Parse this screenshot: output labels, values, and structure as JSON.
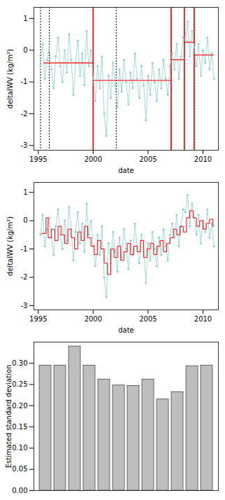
{
  "chart_data": [
    {
      "type": "scatter",
      "xlabel": "date",
      "ylabel": "deltaIWV (kg/m²)",
      "xlim": [
        1994.6,
        2011.4
      ],
      "xticks": [
        1995,
        2000,
        2005,
        2010
      ],
      "ylim": [
        -3.15,
        1.35
      ],
      "yticks": [
        -3,
        -2,
        -1,
        0,
        1
      ],
      "series": [
        {
          "type": "scatter",
          "color": "#8ccfcf",
          "marker": "circle",
          "x": [
            1995.2,
            1995.4,
            1995.6,
            1995.8,
            1996.0,
            1996.2,
            1996.4,
            1996.6,
            1996.8,
            1997.0,
            1997.2,
            1997.4,
            1997.6,
            1997.8,
            1998.0,
            1998.2,
            1998.4,
            1998.6,
            1998.8,
            1999.0,
            1999.2,
            1999.4,
            1999.6,
            1999.8,
            2000.0,
            2000.2,
            2000.4,
            2000.6,
            2000.8,
            2001.0,
            2001.2,
            2001.4,
            2001.6,
            2001.8,
            2002.0,
            2002.2,
            2002.4,
            2002.6,
            2002.8,
            2003.0,
            2003.2,
            2003.4,
            2003.6,
            2003.8,
            2004.0,
            2004.2,
            2004.4,
            2004.6,
            2004.8,
            2005.0,
            2005.2,
            2005.4,
            2005.6,
            2005.8,
            2006.0,
            2006.2,
            2006.4,
            2006.6,
            2006.8,
            2007.0,
            2007.2,
            2007.4,
            2007.6,
            2007.8,
            2008.0,
            2008.2,
            2008.4,
            2008.6,
            2008.8,
            2009.0,
            2009.2,
            2009.4,
            2009.6,
            2009.8,
            2010.0,
            2010.2,
            2010.4,
            2010.6,
            2010.8,
            2011.0
          ],
          "values": [
            -0.5,
            0.2,
            -0.9,
            -0.3,
            0.1,
            -0.6,
            -1.2,
            -0.2,
            0.4,
            -0.5,
            -1.0,
            0.0,
            -0.7,
            0.5,
            -0.3,
            -1.4,
            -0.4,
            0.3,
            -0.8,
            -0.1,
            -1.1,
            0.6,
            -0.5,
            0.0,
            -0.9,
            -1.6,
            -0.5,
            -1.2,
            -0.2,
            -2.0,
            -2.7,
            -0.8,
            -1.5,
            -0.4,
            -1.1,
            -1.8,
            -0.6,
            -1.3,
            -0.3,
            -1.0,
            -1.7,
            -0.7,
            -1.2,
            -0.1,
            -0.9,
            -1.5,
            -0.5,
            -1.1,
            -2.2,
            -0.8,
            -1.4,
            -0.4,
            -1.0,
            -1.6,
            -0.6,
            -1.2,
            -0.3,
            -0.9,
            -1.4,
            -0.5,
            -0.1,
            -0.6,
            0.2,
            -0.9,
            -0.2,
            0.4,
            0.3,
            0.9,
            -0.2,
            0.6,
            0.1,
            -0.5,
            0.2,
            -0.8,
            0.0,
            -0.4,
            0.4,
            -0.6,
            -0.1,
            -0.9
          ]
        },
        {
          "type": "vline",
          "color": "black",
          "line_style": "dotted",
          "x": [
            1995.2,
            1996.0,
            2000.0,
            2002.1,
            2007.1,
            2008.3,
            2009.2
          ]
        },
        {
          "type": "vline",
          "color": "red",
          "line_style": "solid",
          "x": [
            2000.0,
            2007.1,
            2008.3,
            2009.2
          ]
        },
        {
          "type": "segments",
          "color": "red",
          "x_start": [
            1995.5,
            2000.0,
            2007.1,
            2008.3,
            2009.2
          ],
          "x_end": [
            2000.0,
            2007.1,
            2008.3,
            2009.2,
            2011.0
          ],
          "values": [
            -0.4,
            -0.95,
            -0.3,
            0.25,
            -0.15
          ]
        }
      ]
    },
    {
      "type": "scatter",
      "xlabel": "date",
      "ylabel": "deltaIWV (kg/m²)",
      "xlim": [
        1994.6,
        2011.4
      ],
      "xticks": [
        1995,
        2000,
        2005,
        2010
      ],
      "ylim": [
        -3.15,
        1.35
      ],
      "yticks": [
        -3,
        -2,
        -1,
        0,
        1
      ],
      "series": [
        {
          "type": "scatter",
          "color": "#8ccfcf",
          "marker": "circle",
          "x": [
            1995.2,
            1995.4,
            1995.6,
            1995.8,
            1996.0,
            1996.2,
            1996.4,
            1996.6,
            1996.8,
            1997.0,
            1997.2,
            1997.4,
            1997.6,
            1997.8,
            1998.0,
            1998.2,
            1998.4,
            1998.6,
            1998.8,
            1999.0,
            1999.2,
            1999.4,
            1999.6,
            1999.8,
            2000.0,
            2000.2,
            2000.4,
            2000.6,
            2000.8,
            2001.0,
            2001.2,
            2001.4,
            2001.6,
            2001.8,
            2002.0,
            2002.2,
            2002.4,
            2002.6,
            2002.8,
            2003.0,
            2003.2,
            2003.4,
            2003.6,
            2003.8,
            2004.0,
            2004.2,
            2004.4,
            2004.6,
            2004.8,
            2005.0,
            2005.2,
            2005.4,
            2005.6,
            2005.8,
            2006.0,
            2006.2,
            2006.4,
            2006.6,
            2006.8,
            2007.0,
            2007.2,
            2007.4,
            2007.6,
            2007.8,
            2008.0,
            2008.2,
            2008.4,
            2008.6,
            2008.8,
            2009.0,
            2009.2,
            2009.4,
            2009.6,
            2009.8,
            2010.0,
            2010.2,
            2010.4,
            2010.6,
            2010.8,
            2011.0
          ],
          "values": [
            -0.5,
            0.2,
            -0.9,
            -0.3,
            0.1,
            -0.6,
            -1.2,
            -0.2,
            0.4,
            -0.5,
            -1.0,
            0.0,
            -0.7,
            0.5,
            -0.3,
            -1.4,
            -0.4,
            0.3,
            -0.8,
            -0.1,
            -1.1,
            0.6,
            -0.5,
            0.0,
            -0.9,
            -1.6,
            -0.5,
            -1.2,
            -0.2,
            -2.0,
            -2.7,
            -0.8,
            -1.5,
            -0.4,
            -1.1,
            -1.8,
            -0.6,
            -1.3,
            -0.3,
            -1.0,
            -1.7,
            -0.7,
            -1.2,
            -0.1,
            -0.9,
            -1.5,
            -0.5,
            -1.1,
            -2.2,
            -0.8,
            -1.4,
            -0.4,
            -1.0,
            -1.6,
            -0.6,
            -1.2,
            -0.3,
            -0.9,
            -1.4,
            -0.5,
            -0.1,
            -0.6,
            0.2,
            -0.9,
            -0.2,
            0.4,
            0.3,
            0.9,
            -0.2,
            0.6,
            0.1,
            -0.5,
            0.2,
            -0.8,
            0.0,
            -0.4,
            0.4,
            -0.6,
            -0.1,
            -0.9
          ]
        },
        {
          "type": "step",
          "color": "red",
          "x": [
            1995.3,
            1995.7,
            1995.9,
            1996.2,
            1996.5,
            1996.8,
            1997.1,
            1997.4,
            1997.7,
            1998.0,
            1998.3,
            1998.6,
            1998.9,
            1999.2,
            1999.5,
            1999.8,
            2000.1,
            2000.4,
            2000.7,
            2001.0,
            2001.3,
            2001.6,
            2001.9,
            2002.2,
            2002.5,
            2002.8,
            2003.1,
            2003.4,
            2003.7,
            2004.0,
            2004.3,
            2004.6,
            2004.9,
            2005.2,
            2005.5,
            2005.8,
            2006.1,
            2006.4,
            2006.7,
            2007.0,
            2007.3,
            2007.6,
            2007.9,
            2008.2,
            2008.5,
            2008.8,
            2009.1,
            2009.4,
            2009.7,
            2010.0,
            2010.3,
            2010.6,
            2010.9,
            2011.0
          ],
          "values": [
            -0.45,
            0.1,
            -0.6,
            -0.3,
            -0.7,
            -0.2,
            -0.5,
            -0.8,
            -0.3,
            -0.6,
            -1.0,
            -0.4,
            -0.7,
            -0.2,
            -0.6,
            -0.9,
            -1.2,
            -0.7,
            -1.0,
            -1.5,
            -1.9,
            -1.0,
            -1.3,
            -0.9,
            -1.4,
            -1.1,
            -0.8,
            -1.2,
            -0.9,
            -1.1,
            -0.7,
            -1.3,
            -1.0,
            -0.8,
            -1.2,
            -0.9,
            -0.7,
            -1.1,
            -0.8,
            -0.6,
            -0.3,
            -0.5,
            -0.2,
            -0.4,
            0.1,
            0.35,
            0.1,
            -0.2,
            0.0,
            -0.3,
            -0.1,
            0.05,
            -0.2,
            -0.2
          ]
        }
      ]
    },
    {
      "type": "bar",
      "ylabel": "Estimated standard deviation",
      "categories": [
        null,
        null,
        null,
        null,
        null,
        null,
        null,
        null,
        null,
        null,
        null,
        null
      ],
      "values": [
        0.295,
        0.295,
        0.34,
        0.295,
        0.262,
        0.248,
        0.247,
        0.262,
        0.215,
        0.232,
        0.293,
        0.295
      ],
      "color": "#bebebe",
      "ylim": [
        0,
        0.35
      ],
      "yticks": [
        {
          "value": 0,
          "label": "0.00"
        },
        {
          "value": 0.05,
          "label": "0.05"
        },
        {
          "value": 0.1,
          "label": "0.10"
        },
        {
          "value": 0.15,
          "label": "0.15"
        },
        {
          "value": 0.2,
          "label": "0.20"
        },
        {
          "value": 0.25,
          "label": "0.25"
        },
        {
          "value": 0.3,
          "label": "0.30"
        }
      ],
      "tick_labels": "y"
    }
  ]
}
